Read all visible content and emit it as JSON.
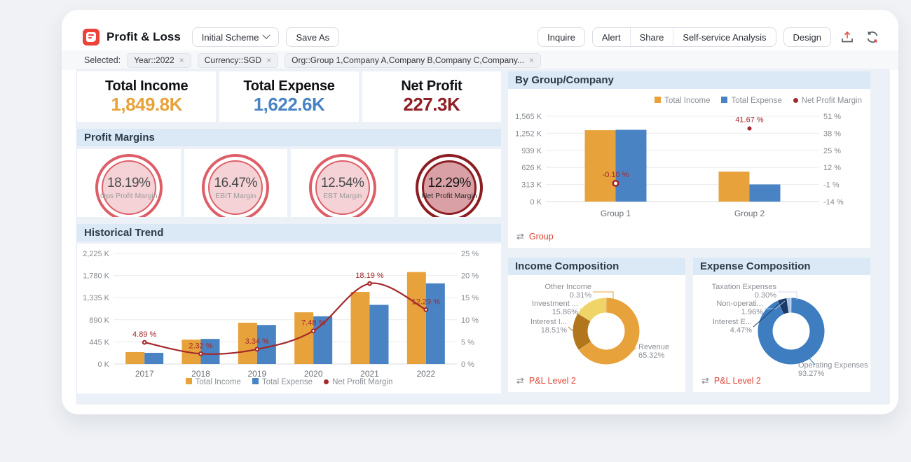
{
  "toolbar": {
    "title": "Profit & Loss",
    "scheme_dropdown": "Initial Scheme",
    "save_as": "Save As",
    "inquire": "Inquire",
    "alert": "Alert",
    "share": "Share",
    "self_service": "Self-service Analysis",
    "design": "Design"
  },
  "filters": {
    "label": "Selected:",
    "chips": [
      "Year::2022",
      "Currency::SGD",
      "Org::Group 1,Company A,Company B,Company C,Company..."
    ]
  },
  "kpis": [
    {
      "label": "Total Income",
      "value": "1,849.8K",
      "color": "#e8a23b"
    },
    {
      "label": "Total Expense",
      "value": "1,622.6K",
      "color": "#4a83c4"
    },
    {
      "label": "Net Profit",
      "value": "227.3K",
      "color": "#8e1f24"
    }
  ],
  "profit_margins": {
    "title": "Profit Margins",
    "gauges": [
      {
        "value": "18.19%",
        "label": "Ops Profit Margin",
        "theme": "light"
      },
      {
        "value": "16.47%",
        "label": "EBIT Margin",
        "theme": "light"
      },
      {
        "value": "12.54%",
        "label": "EBT Margin",
        "theme": "light"
      },
      {
        "value": "12.29%",
        "label": "Net Profit Margin",
        "theme": "dark"
      }
    ]
  },
  "chart_data": [
    {
      "id": "historical_trend",
      "type": "bar+line",
      "title": "Historical Trend",
      "categories": [
        "2017",
        "2018",
        "2019",
        "2020",
        "2021",
        "2022"
      ],
      "series": [
        {
          "name": "Total Income",
          "type": "bar",
          "color": "#e8a23b",
          "values": [
            240,
            490,
            830,
            1040,
            1450,
            1849.8
          ]
        },
        {
          "name": "Total Expense",
          "type": "bar",
          "color": "#4a83c4",
          "values": [
            225,
            505,
            785,
            960,
            1190,
            1622.6
          ]
        },
        {
          "name": "Net Profit Margin",
          "type": "line",
          "color": "#a3282b",
          "values": [
            4.89,
            2.32,
            3.34,
            7.48,
            18.19,
            12.29
          ],
          "labels": [
            "4.89 %",
            "2.32 %",
            "3.34 %",
            "7.48 %",
            "18.19 %",
            "12.29 %"
          ]
        }
      ],
      "y_left": {
        "ticks": [
          "0 K",
          "445 K",
          "890 K",
          "1,335 K",
          "1,780 K",
          "2,225 K"
        ],
        "max": 2225
      },
      "y_right": {
        "ticks": [
          "0 %",
          "5 %",
          "10 %",
          "15 %",
          "20 %",
          "25 %"
        ],
        "min": 0,
        "max": 25
      },
      "legend": [
        "Total Income",
        "Total Expense",
        "Net Profit Margin"
      ],
      "legend_position": "bottom"
    },
    {
      "id": "by_group_company",
      "type": "bar+point",
      "title": "By Group/Company",
      "categories": [
        "Group 1",
        "Group 2"
      ],
      "series": [
        {
          "name": "Total Income",
          "type": "bar",
          "color": "#e8a23b",
          "values": [
            1308,
            549
          ]
        },
        {
          "name": "Total Expense",
          "type": "bar",
          "color": "#4a83c4",
          "values": [
            1316,
            315
          ]
        },
        {
          "name": "Net Profit Margin",
          "type": "point",
          "color": "#a3282b",
          "values": [
            -0.1,
            41.67
          ],
          "labels": [
            "-0.10 %",
            "41.67 %"
          ]
        }
      ],
      "y_left": {
        "ticks": [
          "0 K",
          "313 K",
          "626 K",
          "939 K",
          "1,252 K",
          "1,565 K"
        ],
        "max": 1565
      },
      "y_right": {
        "ticks": [
          "-14 %",
          "-1 %",
          "12 %",
          "25 %",
          "38 %",
          "51 %"
        ],
        "min": -14,
        "max": 51
      },
      "legend": [
        "Total Income",
        "Total Expense",
        "Net Profit Margin"
      ],
      "legend_position": "top-right",
      "footer_link": "Group"
    },
    {
      "id": "income_composition",
      "type": "pie",
      "title": "Income Composition",
      "slices": [
        {
          "name": "Revenue",
          "value": 65.32,
          "color": "#e8a23b",
          "label_lines": [
            "Revenue",
            "65.32%"
          ]
        },
        {
          "name": "Interest I...",
          "value": 18.51,
          "color": "#b2771c",
          "label_lines": [
            "Interest I...",
            "18.51%"
          ]
        },
        {
          "name": "Investment ...",
          "value": 15.86,
          "color": "#efd468",
          "label_lines": [
            "Investment ...",
            "15.86%"
          ]
        },
        {
          "name": "Other Income",
          "value": 0.31,
          "color": "#e8a23b",
          "label_lines": [
            "Other Income",
            "0.31%"
          ]
        }
      ],
      "footer_link": "P&L Level 2"
    },
    {
      "id": "expense_composition",
      "type": "pie",
      "title": "Expense Composition",
      "slices": [
        {
          "name": "Operating Expenses",
          "value": 93.27,
          "color": "#3d7dc0",
          "label_lines": [
            "Operating Expenses",
            "93.27%"
          ]
        },
        {
          "name": "Interest E...",
          "value": 4.47,
          "color": "#1c3a67",
          "label_lines": [
            "Interest E...",
            "4.47%"
          ]
        },
        {
          "name": "Non-operati...",
          "value": 1.96,
          "color": "#a9c6e8",
          "label_lines": [
            "Non-operati...",
            "1.96%"
          ]
        },
        {
          "name": "Taxation Expenses",
          "value": 0.3,
          "color": "#d8d6f0",
          "label_lines": [
            "Taxation Expenses",
            "0.30%"
          ]
        }
      ],
      "footer_link": "P&L Level 2"
    }
  ]
}
